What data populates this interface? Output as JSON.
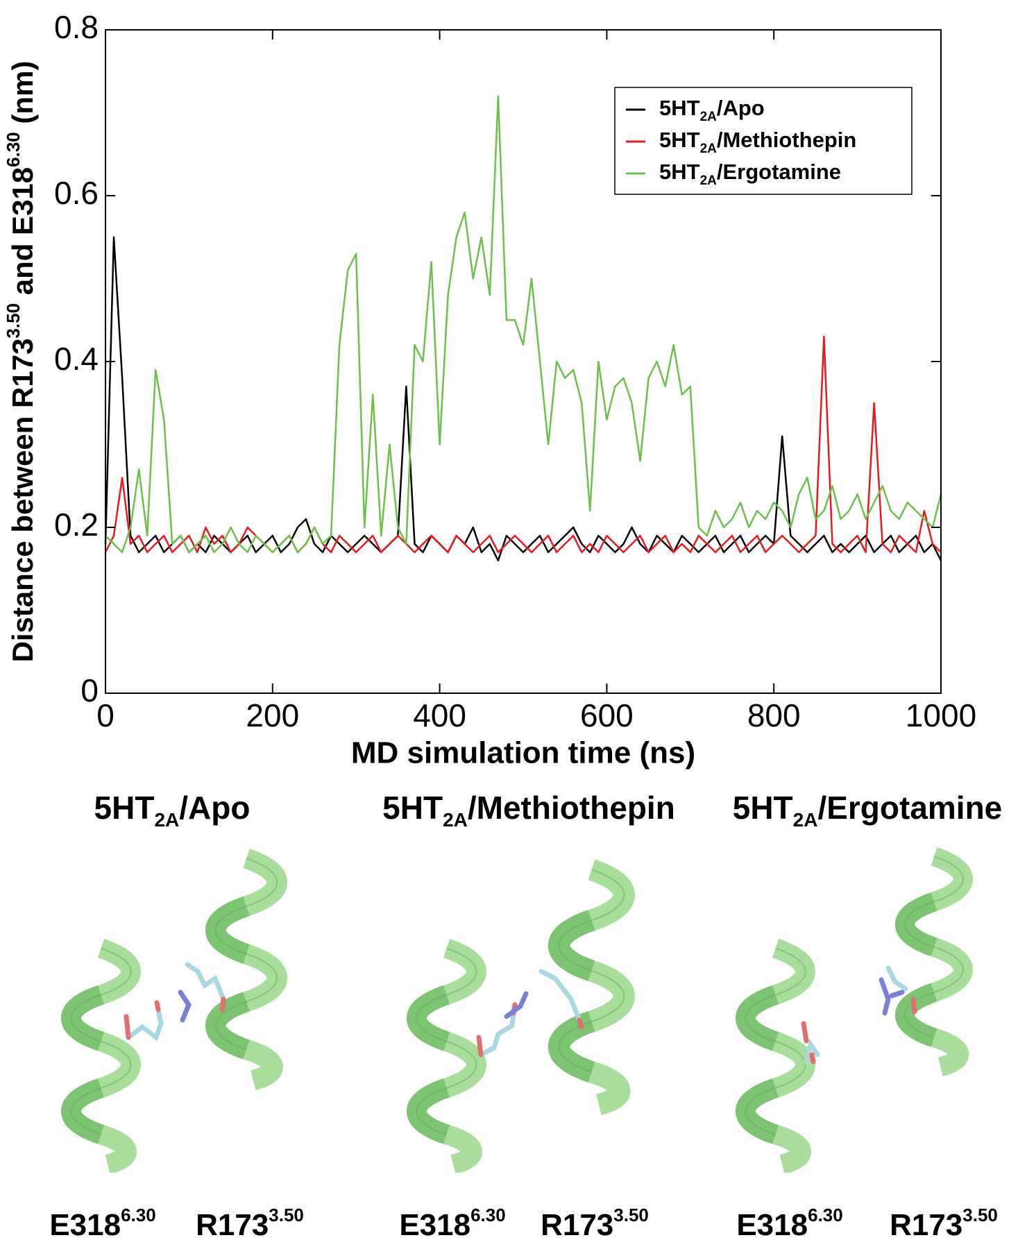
{
  "chart_data": {
    "type": "line",
    "xlabel": "MD simulation time (ns)",
    "ylabel": [
      "Distance between R173",
      "3.50",
      " and E318",
      "6.30",
      " (nm)"
    ],
    "x": [
      0,
      10,
      20,
      30,
      40,
      50,
      60,
      70,
      80,
      90,
      100,
      110,
      120,
      130,
      140,
      150,
      160,
      170,
      180,
      190,
      200,
      210,
      220,
      230,
      240,
      250,
      260,
      270,
      280,
      290,
      300,
      310,
      320,
      330,
      340,
      350,
      360,
      370,
      380,
      390,
      400,
      410,
      420,
      430,
      440,
      450,
      460,
      470,
      480,
      490,
      500,
      510,
      520,
      530,
      540,
      550,
      560,
      570,
      580,
      590,
      600,
      610,
      620,
      630,
      640,
      650,
      660,
      670,
      680,
      690,
      700,
      710,
      720,
      730,
      740,
      750,
      760,
      770,
      780,
      790,
      800,
      810,
      820,
      830,
      840,
      850,
      860,
      870,
      880,
      890,
      900,
      910,
      920,
      930,
      940,
      950,
      960,
      970,
      980,
      990,
      1000
    ],
    "series": [
      {
        "name": [
          "5HT",
          "2A",
          "/Apo"
        ],
        "color": "#000000",
        "values": [
          0.18,
          0.55,
          0.38,
          0.19,
          0.17,
          0.18,
          0.19,
          0.17,
          0.18,
          0.19,
          0.17,
          0.18,
          0.17,
          0.19,
          0.18,
          0.17,
          0.18,
          0.19,
          0.17,
          0.18,
          0.19,
          0.17,
          0.18,
          0.2,
          0.21,
          0.18,
          0.17,
          0.19,
          0.18,
          0.17,
          0.18,
          0.19,
          0.18,
          0.17,
          0.18,
          0.19,
          0.37,
          0.18,
          0.17,
          0.19,
          0.18,
          0.17,
          0.19,
          0.18,
          0.2,
          0.17,
          0.18,
          0.16,
          0.19,
          0.18,
          0.17,
          0.18,
          0.19,
          0.17,
          0.18,
          0.19,
          0.2,
          0.18,
          0.17,
          0.19,
          0.18,
          0.17,
          0.18,
          0.2,
          0.18,
          0.17,
          0.19,
          0.18,
          0.17,
          0.19,
          0.18,
          0.17,
          0.18,
          0.19,
          0.17,
          0.18,
          0.19,
          0.17,
          0.18,
          0.19,
          0.18,
          0.31,
          0.19,
          0.18,
          0.17,
          0.18,
          0.19,
          0.17,
          0.18,
          0.17,
          0.18,
          0.19,
          0.17,
          0.18,
          0.19,
          0.17,
          0.18,
          0.19,
          0.17,
          0.18,
          0.16
        ]
      },
      {
        "name": [
          "5HT",
          "2A",
          "/Methiothepin"
        ],
        "color": "#e8191c",
        "values": [
          0.17,
          0.19,
          0.26,
          0.18,
          0.19,
          0.17,
          0.18,
          0.19,
          0.17,
          0.18,
          0.19,
          0.17,
          0.2,
          0.18,
          0.19,
          0.17,
          0.18,
          0.2,
          0.19,
          0.18,
          0.17,
          0.18,
          0.19,
          0.17,
          0.18,
          0.2,
          0.18,
          0.17,
          0.19,
          0.18,
          0.17,
          0.18,
          0.19,
          0.17,
          0.18,
          0.19,
          0.18,
          0.17,
          0.18,
          0.19,
          0.18,
          0.17,
          0.19,
          0.18,
          0.17,
          0.18,
          0.19,
          0.17,
          0.18,
          0.19,
          0.18,
          0.17,
          0.18,
          0.19,
          0.17,
          0.18,
          0.19,
          0.17,
          0.18,
          0.17,
          0.19,
          0.18,
          0.17,
          0.18,
          0.19,
          0.17,
          0.18,
          0.19,
          0.17,
          0.18,
          0.17,
          0.19,
          0.18,
          0.17,
          0.18,
          0.19,
          0.17,
          0.18,
          0.19,
          0.17,
          0.18,
          0.19,
          0.18,
          0.17,
          0.18,
          0.19,
          0.43,
          0.18,
          0.17,
          0.18,
          0.19,
          0.17,
          0.35,
          0.18,
          0.17,
          0.19,
          0.18,
          0.17,
          0.22,
          0.18,
          0.17
        ]
      },
      {
        "name": [
          "5HT",
          "2A",
          "/Ergotamine"
        ],
        "color": "#6cc04a",
        "values": [
          0.19,
          0.18,
          0.17,
          0.2,
          0.27,
          0.19,
          0.39,
          0.33,
          0.18,
          0.19,
          0.17,
          0.18,
          0.19,
          0.17,
          0.18,
          0.2,
          0.18,
          0.17,
          0.19,
          0.18,
          0.17,
          0.18,
          0.19,
          0.17,
          0.18,
          0.2,
          0.18,
          0.19,
          0.42,
          0.51,
          0.53,
          0.2,
          0.36,
          0.19,
          0.3,
          0.2,
          0.18,
          0.42,
          0.4,
          0.52,
          0.3,
          0.48,
          0.55,
          0.58,
          0.5,
          0.55,
          0.48,
          0.72,
          0.45,
          0.45,
          0.42,
          0.5,
          0.4,
          0.3,
          0.4,
          0.38,
          0.39,
          0.35,
          0.22,
          0.4,
          0.33,
          0.37,
          0.38,
          0.35,
          0.28,
          0.38,
          0.4,
          0.37,
          0.42,
          0.36,
          0.37,
          0.2,
          0.19,
          0.22,
          0.2,
          0.21,
          0.23,
          0.2,
          0.22,
          0.21,
          0.23,
          0.22,
          0.2,
          0.24,
          0.26,
          0.21,
          0.22,
          0.25,
          0.21,
          0.22,
          0.24,
          0.21,
          0.23,
          0.25,
          0.22,
          0.21,
          0.23,
          0.22,
          0.21,
          0.2,
          0.24
        ]
      }
    ],
    "xlim": [
      0,
      1000
    ],
    "xticks": [
      0,
      200,
      400,
      600,
      800,
      1000
    ],
    "ylim": [
      0,
      0.8
    ],
    "yticks": [
      0,
      0.2,
      0.4,
      0.6,
      0.8
    ],
    "legend": "top-right"
  },
  "panels": [
    {
      "title": [
        "5HT",
        "2A",
        "/Apo"
      ],
      "residues": [
        [
          "E318",
          "6.30"
        ],
        [
          "R173",
          "3.50"
        ]
      ]
    },
    {
      "title": [
        "5HT",
        "2A",
        "/Methiothepin"
      ],
      "residues": [
        [
          "E318",
          "6.30"
        ],
        [
          "R173",
          "3.50"
        ]
      ]
    },
    {
      "title": [
        "5HT",
        "2A",
        "/Ergotamine"
      ],
      "residues": [
        [
          "E318",
          "6.30"
        ],
        [
          "R173",
          "3.50"
        ]
      ]
    }
  ]
}
